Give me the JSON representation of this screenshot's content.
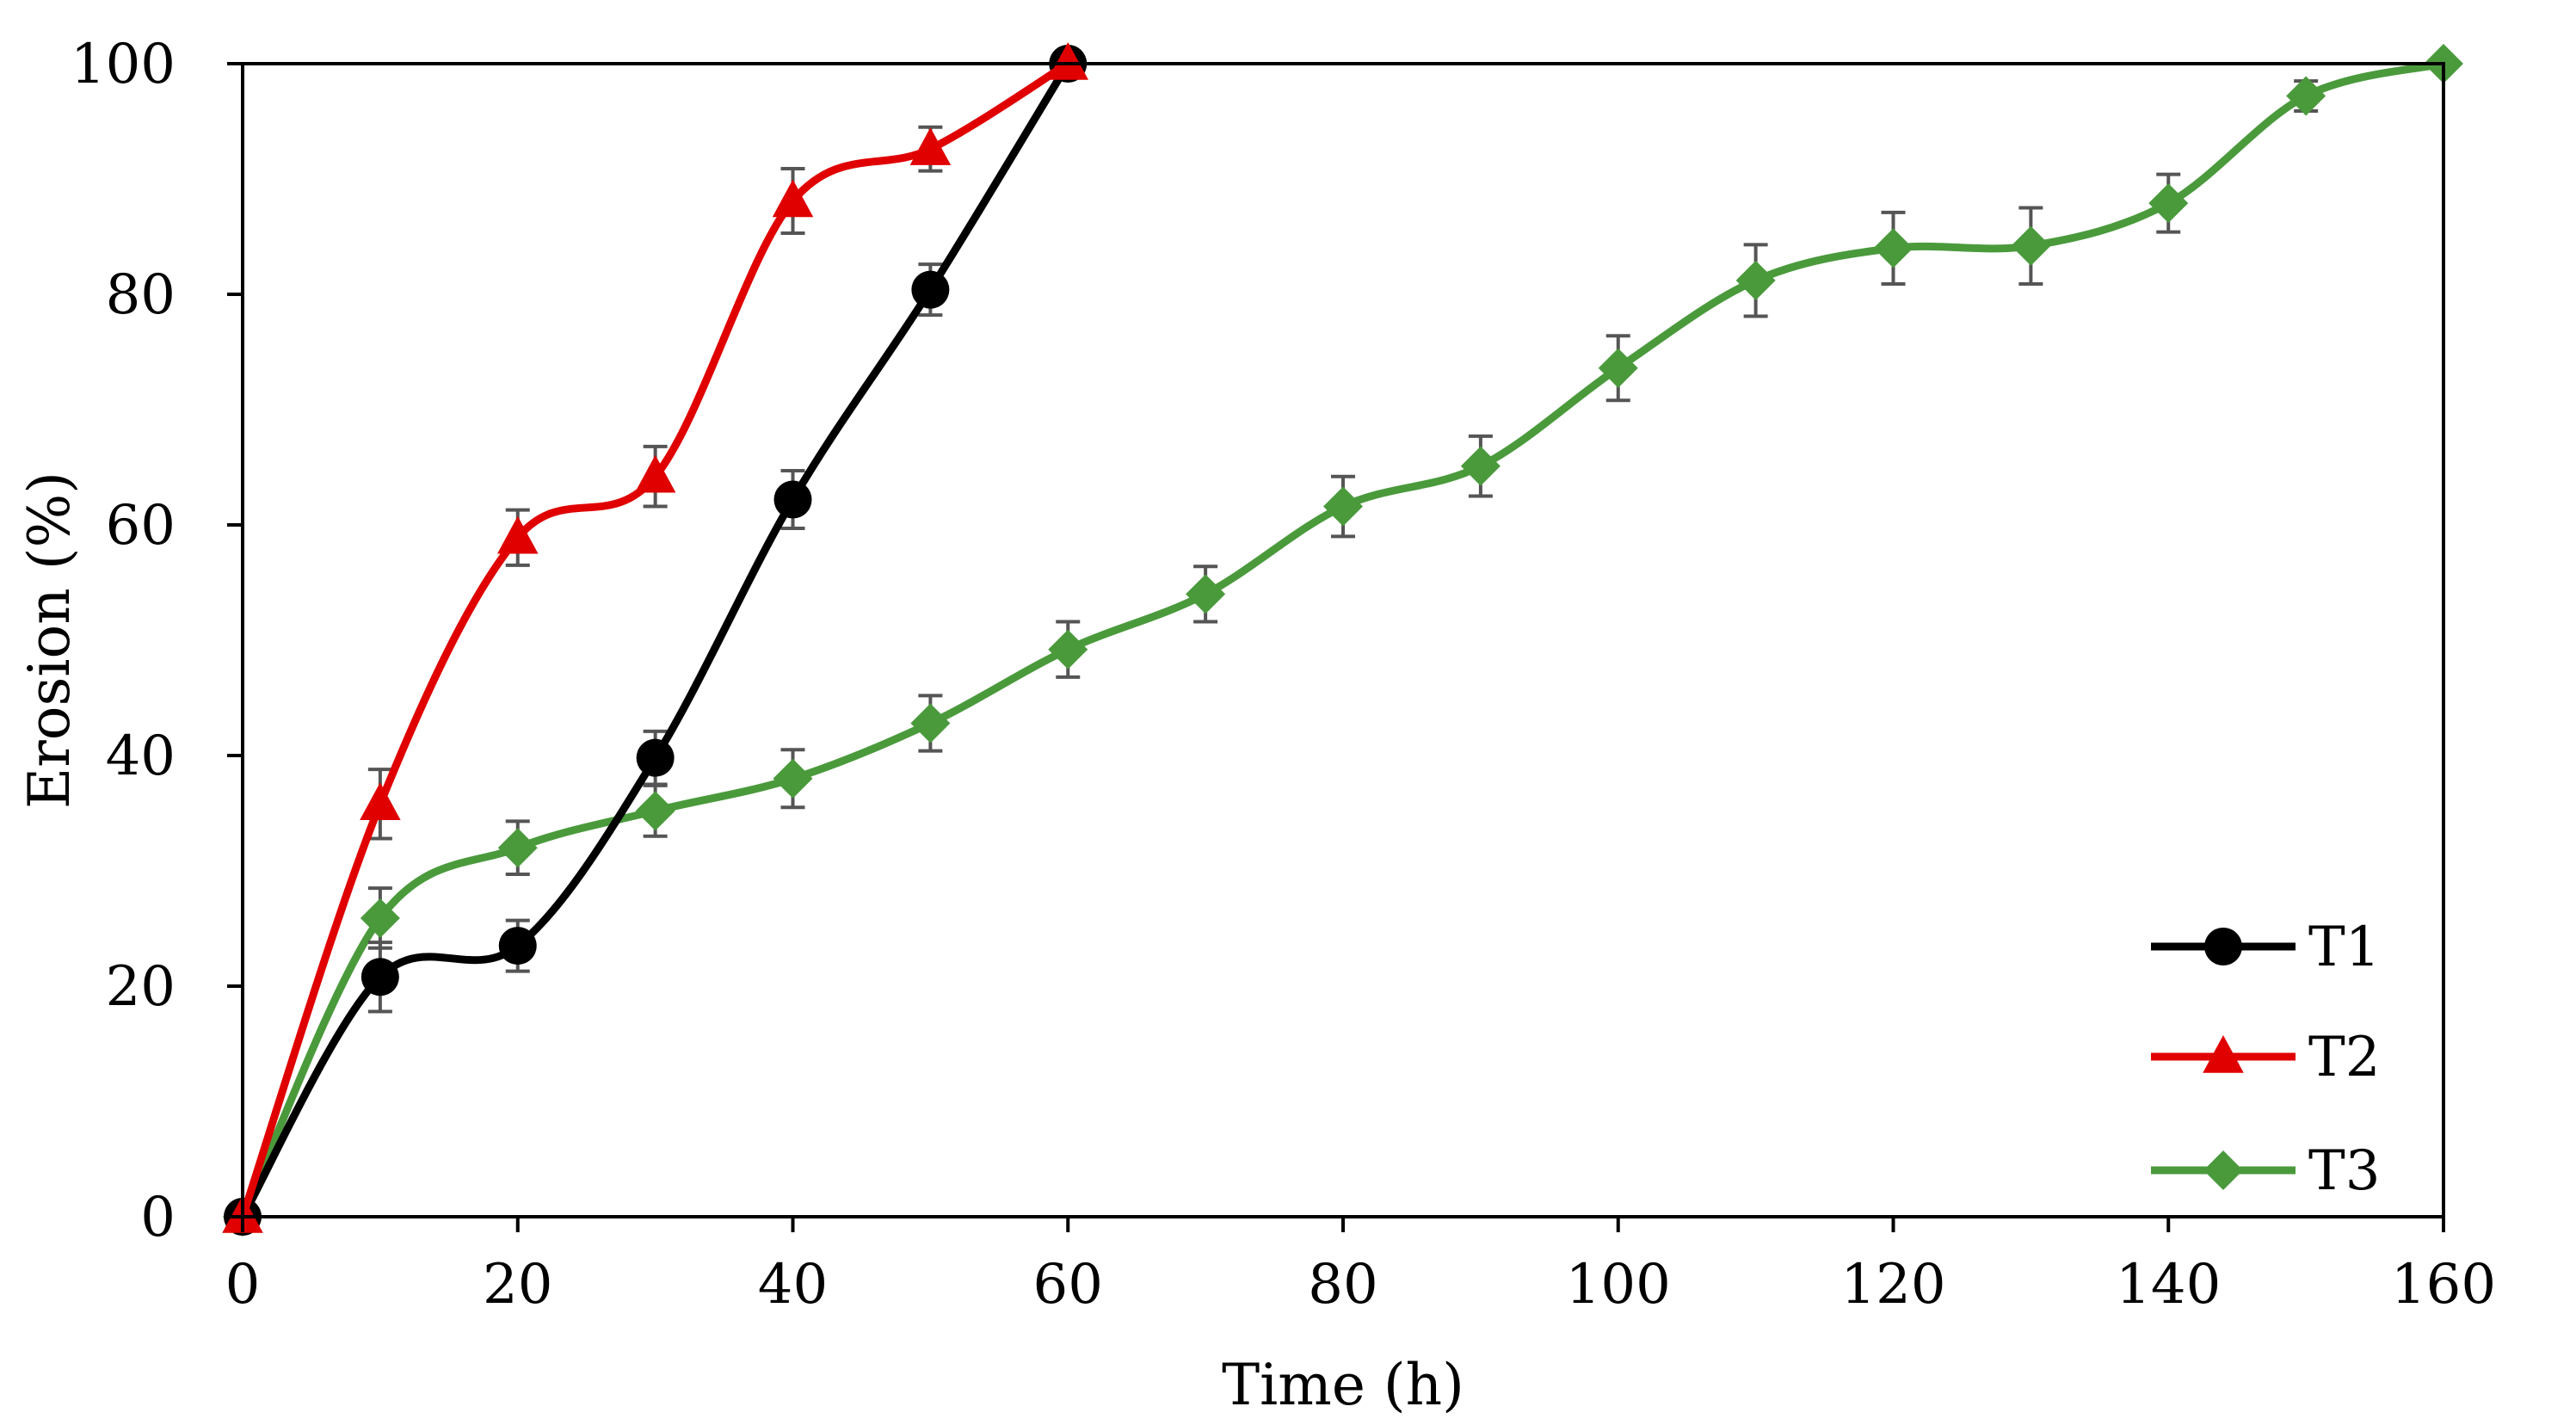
{
  "chart_data": {
    "type": "line",
    "title": "",
    "xlabel": "Time (h)",
    "ylabel": "Erosion (%)",
    "xlim": [
      0,
      160
    ],
    "ylim": [
      0,
      100
    ],
    "xticks": [
      0,
      20,
      40,
      60,
      80,
      100,
      120,
      140,
      160
    ],
    "yticks": [
      0,
      20,
      40,
      60,
      80,
      100
    ],
    "grid": false,
    "legend_position": "bottom-right",
    "series": [
      {
        "name": "T1",
        "color": "#000000",
        "marker": "circle",
        "x": [
          0,
          10,
          20,
          30,
          40,
          50,
          60
        ],
        "y": [
          0,
          20.8,
          23.5,
          39.8,
          62.2,
          80.4,
          100
        ],
        "err": [
          0,
          3.0,
          2.2,
          2.3,
          2.5,
          2.2,
          0
        ]
      },
      {
        "name": "T2",
        "color": "#e00000",
        "marker": "triangle",
        "x": [
          0,
          10,
          20,
          30,
          40,
          50,
          60
        ],
        "y": [
          0,
          35.8,
          58.9,
          64.2,
          88.1,
          92.6,
          100
        ],
        "err": [
          0,
          3.0,
          2.4,
          2.6,
          2.8,
          1.9,
          0
        ]
      },
      {
        "name": "T3",
        "color": "#4a9a3c",
        "marker": "diamond",
        "x": [
          0,
          10,
          20,
          30,
          40,
          50,
          60,
          70,
          80,
          90,
          100,
          110,
          120,
          130,
          140,
          150,
          160
        ],
        "y": [
          0,
          25.9,
          32.0,
          35.2,
          38.0,
          42.8,
          49.2,
          54.0,
          61.6,
          65.1,
          73.6,
          81.2,
          84.0,
          84.2,
          87.9,
          97.2,
          100
        ],
        "err": [
          0,
          2.6,
          2.3,
          2.2,
          2.5,
          2.4,
          2.4,
          2.4,
          2.6,
          2.6,
          2.8,
          3.1,
          3.1,
          3.3,
          2.5,
          1.3,
          0
        ]
      }
    ]
  }
}
